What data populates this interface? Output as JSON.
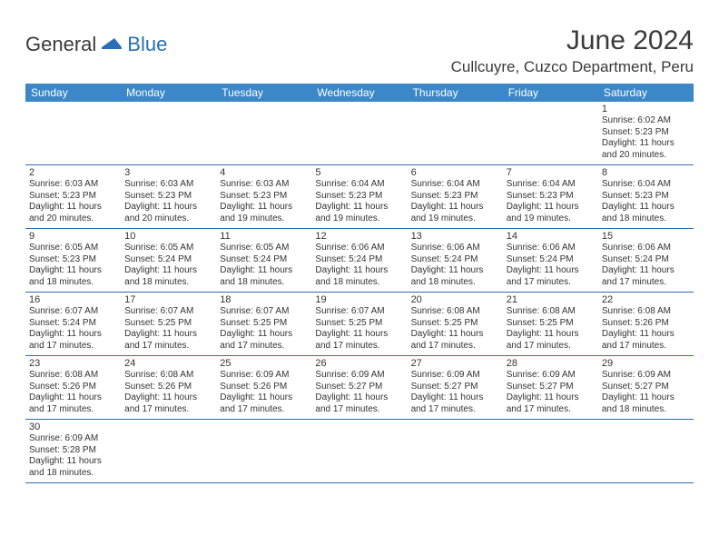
{
  "logo": {
    "part1": "General",
    "part2": "Blue"
  },
  "title": "June 2024",
  "location": "Cullcuyre, Cuzco Department, Peru",
  "headers": [
    "Sunday",
    "Monday",
    "Tuesday",
    "Wednesday",
    "Thursday",
    "Friday",
    "Saturday"
  ],
  "colors": {
    "header_bg": "#3b87c8",
    "header_text": "#ffffff",
    "row_border": "#2a6fb5",
    "text": "#333333",
    "logo_blue": "#2a6fb5"
  },
  "weeks": [
    [
      null,
      null,
      null,
      null,
      null,
      null,
      {
        "day": "1",
        "sunrise": "Sunrise: 6:02 AM",
        "sunset": "Sunset: 5:23 PM",
        "daylight1": "Daylight: 11 hours",
        "daylight2": "and 20 minutes."
      }
    ],
    [
      {
        "day": "2",
        "sunrise": "Sunrise: 6:03 AM",
        "sunset": "Sunset: 5:23 PM",
        "daylight1": "Daylight: 11 hours",
        "daylight2": "and 20 minutes."
      },
      {
        "day": "3",
        "sunrise": "Sunrise: 6:03 AM",
        "sunset": "Sunset: 5:23 PM",
        "daylight1": "Daylight: 11 hours",
        "daylight2": "and 20 minutes."
      },
      {
        "day": "4",
        "sunrise": "Sunrise: 6:03 AM",
        "sunset": "Sunset: 5:23 PM",
        "daylight1": "Daylight: 11 hours",
        "daylight2": "and 19 minutes."
      },
      {
        "day": "5",
        "sunrise": "Sunrise: 6:04 AM",
        "sunset": "Sunset: 5:23 PM",
        "daylight1": "Daylight: 11 hours",
        "daylight2": "and 19 minutes."
      },
      {
        "day": "6",
        "sunrise": "Sunrise: 6:04 AM",
        "sunset": "Sunset: 5:23 PM",
        "daylight1": "Daylight: 11 hours",
        "daylight2": "and 19 minutes."
      },
      {
        "day": "7",
        "sunrise": "Sunrise: 6:04 AM",
        "sunset": "Sunset: 5:23 PM",
        "daylight1": "Daylight: 11 hours",
        "daylight2": "and 19 minutes."
      },
      {
        "day": "8",
        "sunrise": "Sunrise: 6:04 AM",
        "sunset": "Sunset: 5:23 PM",
        "daylight1": "Daylight: 11 hours",
        "daylight2": "and 18 minutes."
      }
    ],
    [
      {
        "day": "9",
        "sunrise": "Sunrise: 6:05 AM",
        "sunset": "Sunset: 5:23 PM",
        "daylight1": "Daylight: 11 hours",
        "daylight2": "and 18 minutes."
      },
      {
        "day": "10",
        "sunrise": "Sunrise: 6:05 AM",
        "sunset": "Sunset: 5:24 PM",
        "daylight1": "Daylight: 11 hours",
        "daylight2": "and 18 minutes."
      },
      {
        "day": "11",
        "sunrise": "Sunrise: 6:05 AM",
        "sunset": "Sunset: 5:24 PM",
        "daylight1": "Daylight: 11 hours",
        "daylight2": "and 18 minutes."
      },
      {
        "day": "12",
        "sunrise": "Sunrise: 6:06 AM",
        "sunset": "Sunset: 5:24 PM",
        "daylight1": "Daylight: 11 hours",
        "daylight2": "and 18 minutes."
      },
      {
        "day": "13",
        "sunrise": "Sunrise: 6:06 AM",
        "sunset": "Sunset: 5:24 PM",
        "daylight1": "Daylight: 11 hours",
        "daylight2": "and 18 minutes."
      },
      {
        "day": "14",
        "sunrise": "Sunrise: 6:06 AM",
        "sunset": "Sunset: 5:24 PM",
        "daylight1": "Daylight: 11 hours",
        "daylight2": "and 17 minutes."
      },
      {
        "day": "15",
        "sunrise": "Sunrise: 6:06 AM",
        "sunset": "Sunset: 5:24 PM",
        "daylight1": "Daylight: 11 hours",
        "daylight2": "and 17 minutes."
      }
    ],
    [
      {
        "day": "16",
        "sunrise": "Sunrise: 6:07 AM",
        "sunset": "Sunset: 5:24 PM",
        "daylight1": "Daylight: 11 hours",
        "daylight2": "and 17 minutes."
      },
      {
        "day": "17",
        "sunrise": "Sunrise: 6:07 AM",
        "sunset": "Sunset: 5:25 PM",
        "daylight1": "Daylight: 11 hours",
        "daylight2": "and 17 minutes."
      },
      {
        "day": "18",
        "sunrise": "Sunrise: 6:07 AM",
        "sunset": "Sunset: 5:25 PM",
        "daylight1": "Daylight: 11 hours",
        "daylight2": "and 17 minutes."
      },
      {
        "day": "19",
        "sunrise": "Sunrise: 6:07 AM",
        "sunset": "Sunset: 5:25 PM",
        "daylight1": "Daylight: 11 hours",
        "daylight2": "and 17 minutes."
      },
      {
        "day": "20",
        "sunrise": "Sunrise: 6:08 AM",
        "sunset": "Sunset: 5:25 PM",
        "daylight1": "Daylight: 11 hours",
        "daylight2": "and 17 minutes."
      },
      {
        "day": "21",
        "sunrise": "Sunrise: 6:08 AM",
        "sunset": "Sunset: 5:25 PM",
        "daylight1": "Daylight: 11 hours",
        "daylight2": "and 17 minutes."
      },
      {
        "day": "22",
        "sunrise": "Sunrise: 6:08 AM",
        "sunset": "Sunset: 5:26 PM",
        "daylight1": "Daylight: 11 hours",
        "daylight2": "and 17 minutes."
      }
    ],
    [
      {
        "day": "23",
        "sunrise": "Sunrise: 6:08 AM",
        "sunset": "Sunset: 5:26 PM",
        "daylight1": "Daylight: 11 hours",
        "daylight2": "and 17 minutes."
      },
      {
        "day": "24",
        "sunrise": "Sunrise: 6:08 AM",
        "sunset": "Sunset: 5:26 PM",
        "daylight1": "Daylight: 11 hours",
        "daylight2": "and 17 minutes."
      },
      {
        "day": "25",
        "sunrise": "Sunrise: 6:09 AM",
        "sunset": "Sunset: 5:26 PM",
        "daylight1": "Daylight: 11 hours",
        "daylight2": "and 17 minutes."
      },
      {
        "day": "26",
        "sunrise": "Sunrise: 6:09 AM",
        "sunset": "Sunset: 5:27 PM",
        "daylight1": "Daylight: 11 hours",
        "daylight2": "and 17 minutes."
      },
      {
        "day": "27",
        "sunrise": "Sunrise: 6:09 AM",
        "sunset": "Sunset: 5:27 PM",
        "daylight1": "Daylight: 11 hours",
        "daylight2": "and 17 minutes."
      },
      {
        "day": "28",
        "sunrise": "Sunrise: 6:09 AM",
        "sunset": "Sunset: 5:27 PM",
        "daylight1": "Daylight: 11 hours",
        "daylight2": "and 17 minutes."
      },
      {
        "day": "29",
        "sunrise": "Sunrise: 6:09 AM",
        "sunset": "Sunset: 5:27 PM",
        "daylight1": "Daylight: 11 hours",
        "daylight2": "and 18 minutes."
      }
    ],
    [
      {
        "day": "30",
        "sunrise": "Sunrise: 6:09 AM",
        "sunset": "Sunset: 5:28 PM",
        "daylight1": "Daylight: 11 hours",
        "daylight2": "and 18 minutes."
      },
      null,
      null,
      null,
      null,
      null,
      null
    ]
  ]
}
